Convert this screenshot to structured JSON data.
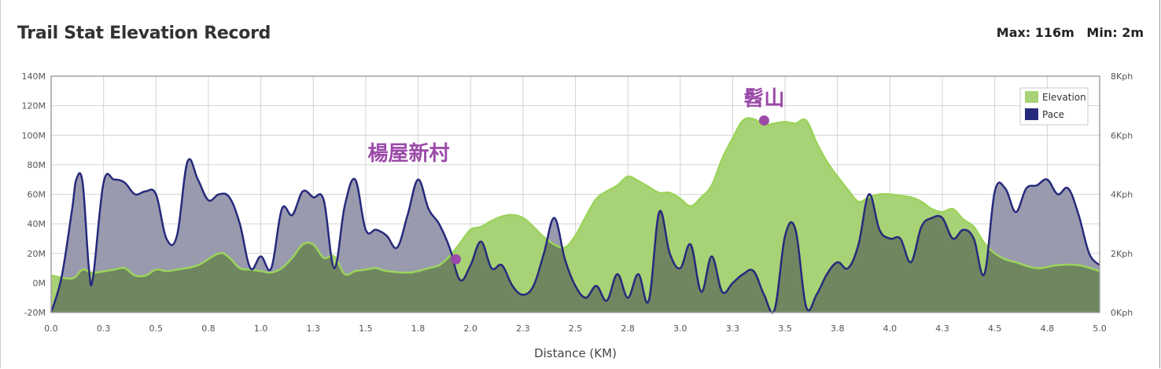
{
  "title": "Trail Stat Elevation Record",
  "stats": {
    "max_label": "Max: 116m",
    "min_label": "Min: 2m"
  },
  "colors": {
    "elevation_fill": "#a8d276",
    "elevation_line": "#9bd45a",
    "pace_line": "#262a7c",
    "pace_fill": "#9a9aae",
    "overlap": "#6f8660",
    "annotation": "#9b4aa8",
    "grid": "#d4d4d4"
  },
  "chart_data": {
    "type": "area",
    "xlabel": "Distance (KM)",
    "x_ticks": [
      "0.0",
      "0.3",
      "0.5",
      "0.8",
      "1.0",
      "1.3",
      "1.5",
      "1.8",
      "2.0",
      "2.3",
      "2.5",
      "2.8",
      "3.0",
      "3.3",
      "3.5",
      "3.8",
      "4.0",
      "4.3",
      "4.5",
      "4.8",
      "5.0"
    ],
    "xlim": [
      0,
      5.0
    ],
    "y_left": {
      "ylim": [
        -20,
        140
      ],
      "ticks": [
        "140M",
        "120M",
        "100M",
        "80M",
        "60M",
        "40M",
        "20M",
        "0M",
        "-20M"
      ]
    },
    "y_right": {
      "ylim": [
        0,
        8
      ],
      "ticks": [
        "8Kph",
        "6Kph",
        "4Kph",
        "2Kph",
        "0Kph"
      ]
    },
    "grid": true,
    "legend": {
      "position": "top-right",
      "entries": [
        "Elevation",
        "Pace"
      ]
    },
    "series": [
      {
        "name": "Elevation",
        "axis": "left",
        "x": [
          0.0,
          0.1,
          0.15,
          0.2,
          0.3,
          0.35,
          0.4,
          0.45,
          0.5,
          0.55,
          0.6,
          0.7,
          0.8,
          0.85,
          0.9,
          0.95,
          1.0,
          1.05,
          1.1,
          1.15,
          1.2,
          1.25,
          1.3,
          1.35,
          1.4,
          1.45,
          1.5,
          1.55,
          1.6,
          1.7,
          1.75,
          1.8,
          1.85,
          1.9,
          1.95,
          2.0,
          2.05,
          2.1,
          2.15,
          2.2,
          2.25,
          2.3,
          2.35,
          2.4,
          2.45,
          2.5,
          2.55,
          2.6,
          2.65,
          2.7,
          2.75,
          2.8,
          2.85,
          2.9,
          2.95,
          3.0,
          3.05,
          3.1,
          3.15,
          3.2,
          3.25,
          3.3,
          3.35,
          3.4,
          3.45,
          3.5,
          3.55,
          3.6,
          3.65,
          3.7,
          3.75,
          3.8,
          3.85,
          3.9,
          3.95,
          4.0,
          4.05,
          4.1,
          4.15,
          4.2,
          4.25,
          4.3,
          4.35,
          4.4,
          4.45,
          4.5,
          4.55,
          4.6,
          4.7,
          4.8,
          4.9,
          5.0
        ],
        "values": [
          5,
          3,
          9,
          7,
          9,
          10,
          5,
          5,
          9,
          8,
          9,
          12,
          20,
          17,
          10,
          9,
          8,
          7,
          10,
          17,
          26,
          26,
          17,
          18,
          6,
          8,
          9,
          10,
          8,
          7,
          8,
          10,
          12,
          18,
          27,
          36,
          38,
          42,
          45,
          46,
          44,
          38,
          31,
          26,
          24,
          32,
          45,
          57,
          62,
          66,
          72,
          69,
          65,
          61,
          61,
          57,
          52,
          58,
          66,
          84,
          98,
          110,
          111,
          107,
          108,
          109,
          108,
          110,
          95,
          82,
          72,
          63,
          55,
          58,
          60,
          60,
          59,
          58,
          55,
          50,
          48,
          50,
          43,
          38,
          27,
          20,
          16,
          14,
          10,
          12,
          12,
          8
        ]
      },
      {
        "name": "Pace",
        "axis": "right",
        "x": [
          0.0,
          0.05,
          0.1,
          0.12,
          0.15,
          0.18,
          0.2,
          0.25,
          0.3,
          0.35,
          0.4,
          0.45,
          0.5,
          0.55,
          0.6,
          0.65,
          0.7,
          0.75,
          0.8,
          0.85,
          0.9,
          0.95,
          1.0,
          1.05,
          1.1,
          1.15,
          1.2,
          1.25,
          1.3,
          1.35,
          1.4,
          1.45,
          1.5,
          1.55,
          1.6,
          1.65,
          1.7,
          1.75,
          1.8,
          1.85,
          1.9,
          1.95,
          2.0,
          2.05,
          2.1,
          2.15,
          2.2,
          2.25,
          2.3,
          2.35,
          2.4,
          2.45,
          2.5,
          2.55,
          2.6,
          2.65,
          2.7,
          2.75,
          2.8,
          2.85,
          2.9,
          2.95,
          3.0,
          3.05,
          3.1,
          3.15,
          3.2,
          3.25,
          3.3,
          3.35,
          3.4,
          3.45,
          3.5,
          3.55,
          3.6,
          3.65,
          3.7,
          3.75,
          3.8,
          3.85,
          3.9,
          3.95,
          4.0,
          4.05,
          4.1,
          4.15,
          4.2,
          4.25,
          4.3,
          4.35,
          4.4,
          4.45,
          4.5,
          4.55,
          4.6,
          4.65,
          4.7,
          4.75,
          4.8,
          4.85,
          4.9,
          4.95,
          5.0
        ],
        "values": [
          0,
          1.2,
          3.5,
          4.5,
          4.4,
          1.5,
          1.2,
          4.4,
          4.5,
          4.4,
          4.0,
          4.1,
          4.0,
          2.5,
          2.6,
          5.1,
          4.5,
          3.8,
          4.0,
          3.9,
          3.0,
          1.5,
          1.9,
          1.5,
          3.5,
          3.3,
          4.1,
          3.9,
          3.8,
          1.5,
          3.6,
          4.5,
          2.8,
          2.8,
          2.6,
          2.2,
          3.3,
          4.5,
          3.5,
          3.0,
          2.2,
          1.1,
          1.6,
          2.4,
          1.5,
          1.6,
          0.9,
          0.6,
          0.9,
          2.0,
          3.2,
          1.8,
          0.9,
          0.5,
          0.9,
          0.4,
          1.3,
          0.5,
          1.3,
          0.4,
          3.4,
          2.0,
          1.5,
          2.3,
          0.7,
          1.9,
          0.7,
          1.0,
          1.3,
          1.4,
          0.6,
          0.1,
          2.6,
          2.8,
          0.2,
          0.6,
          1.3,
          1.7,
          1.5,
          2.3,
          4.0,
          2.8,
          2.5,
          2.5,
          1.7,
          2.9,
          3.2,
          3.2,
          2.5,
          2.8,
          2.5,
          1.3,
          4.1,
          4.2,
          3.4,
          4.2,
          4.3,
          4.5,
          4.0,
          4.2,
          3.3,
          2.0,
          1.6
        ]
      }
    ],
    "annotations": [
      {
        "text": "楊屋新村",
        "x": 1.93,
        "axis": "left",
        "y": 16
      },
      {
        "text": "髫山",
        "x": 3.4,
        "axis": "left",
        "y": 110
      }
    ]
  }
}
